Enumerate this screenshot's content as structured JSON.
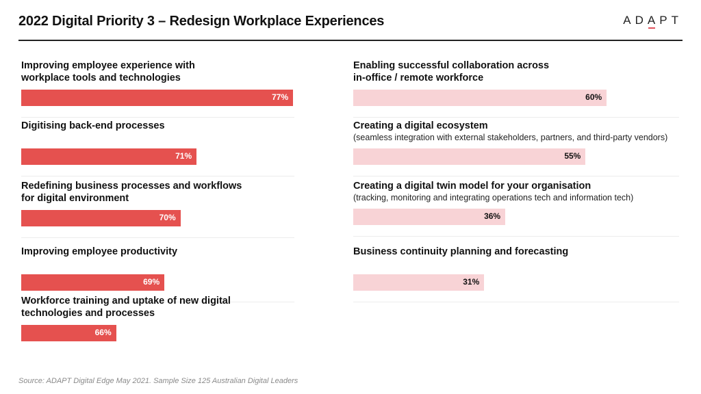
{
  "header": {
    "title": "2022 Digital Priority 3 –  Redesign Workplace Experiences",
    "logo": [
      "A",
      "D",
      "A",
      "P",
      "T"
    ]
  },
  "colors": {
    "primary_bar": "#e5514f",
    "secondary_bar": "#f8d3d6",
    "accent": "#e0505a"
  },
  "chart_data": {
    "type": "bar",
    "title": "2022 Digital Priority 3 –  Redesign Workplace Experiences",
    "orientation": "horizontal",
    "series": [
      {
        "name": "left-column",
        "items": [
          {
            "label": "Improving employee experience with workplace tools and technologies",
            "lines": [
              "Improving employee experience with",
              "workplace tools and technologies"
            ],
            "sub": "",
            "value": 77,
            "display": "77%"
          },
          {
            "label": "Digitising back-end processes",
            "lines": [
              "Digitising back-end processes"
            ],
            "sub": "",
            "value": 71,
            "display": "71%"
          },
          {
            "label": "Redefining business processes and workflows for digital environment",
            "lines": [
              "Redefining business processes and workflows",
              "for digital environment"
            ],
            "sub": "",
            "value": 70,
            "display": "70%"
          },
          {
            "label": "Improving employee productivity",
            "lines": [
              "Improving employee productivity"
            ],
            "sub": "",
            "value": 69,
            "display": "69%"
          },
          {
            "label": "Workforce training and uptake of new digital technologies and processes",
            "lines": [
              "Workforce training and uptake of new digital",
              "technologies and processes"
            ],
            "sub": "",
            "value": 66,
            "display": "66%"
          }
        ]
      },
      {
        "name": "right-column",
        "items": [
          {
            "label": "Enabling successful collaboration across in-office / remote workforce",
            "lines": [
              "Enabling successful collaboration across",
              "in-office / remote workforce"
            ],
            "sub": "",
            "value": 60,
            "display": "60%"
          },
          {
            "label": "Creating a digital ecosystem",
            "lines": [
              "Creating a digital ecosystem"
            ],
            "sub": "(seamless integration with external stakeholders, partners, and third-party vendors)",
            "value": 55,
            "display": "55%"
          },
          {
            "label": "Creating a digital twin model for your organisation",
            "lines": [
              "Creating a digital twin model for your organisation"
            ],
            "sub": "(tracking, monitoring and integrating operations tech and information tech)",
            "value": 36,
            "display": "36%"
          },
          {
            "label": "Business continuity planning and forecasting",
            "lines": [
              "Business continuity planning and forecasting"
            ],
            "sub": "",
            "value": 31,
            "display": "31%"
          }
        ]
      }
    ],
    "xlabel": "",
    "ylabel": "",
    "grid": false,
    "legend": "none"
  },
  "footer": {
    "source": "Source: ADAPT Digital Edge May 2021. Sample Size 125 Australian Digital Leaders"
  }
}
